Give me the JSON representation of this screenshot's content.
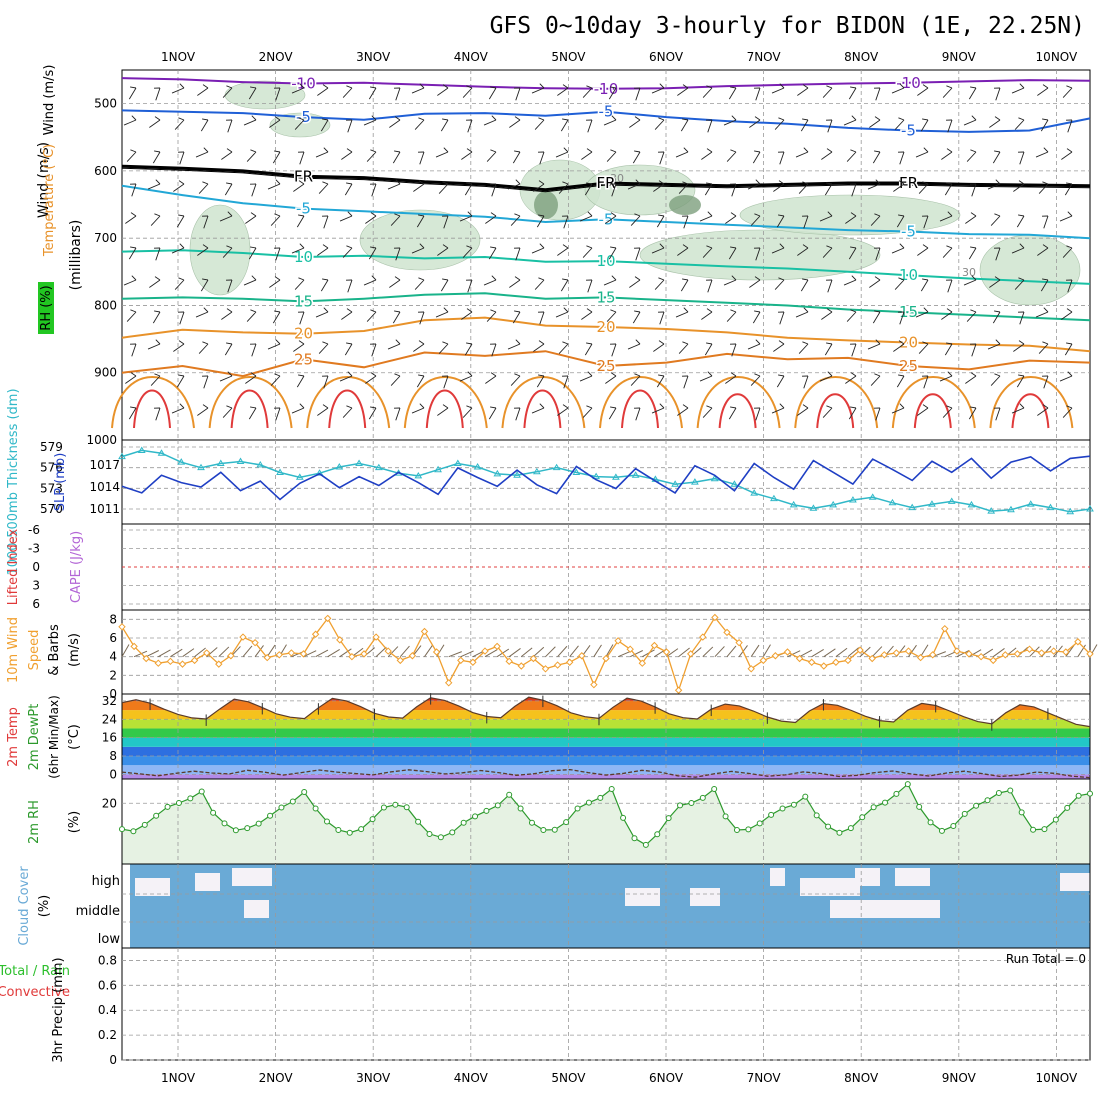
{
  "title": "GFS 0~10day 3-hourly for BIDON (1E, 22.25N)",
  "days": [
    "1NOV",
    "2NOV",
    "3NOV",
    "4NOV",
    "5NOV",
    "6NOV",
    "7NOV",
    "8NOV",
    "9NOV",
    "10NOV"
  ],
  "colors": {
    "temp_cold": "#7a1fb3",
    "temp_cool": "#1f5fd6",
    "temp_mild": "#22a7d6",
    "temp_warm": "#19c0a4",
    "temp_orange": "#e8922a",
    "temp_hot": "#e03a3a",
    "rh_fill": "#cfe5d0",
    "slp": "#1f3fc4",
    "thick": "#30b8c8",
    "wind10": "#f0a030",
    "rh2m": "#2d9a2d",
    "cloud": "#6aaad6",
    "grid": "#9a9a9a"
  },
  "chart_data": [
    {
      "type": "contour",
      "id": "upper_air",
      "ylabel_parts": [
        "RH (%)",
        "Temperature (°C)",
        "Wind (m/s)"
      ],
      "ylabel_unit": "(millibars)",
      "y_ticks": [
        "500",
        "600",
        "700",
        "800",
        "900",
        "1000"
      ],
      "ylim": [
        450,
        1000
      ],
      "temp_contours": [
        {
          "label": "-10",
          "color": "#7a1fb3",
          "values": [
            462,
            464,
            468,
            470,
            469,
            472,
            475,
            477,
            478,
            477,
            474,
            472,
            470,
            469,
            467,
            465,
            466
          ]
        },
        {
          "label": "-5",
          "color": "#1f5fd6",
          "values": [
            510,
            512,
            514,
            520,
            524,
            515,
            514,
            518,
            512,
            520,
            526,
            530,
            536,
            540,
            542,
            540,
            522
          ]
        },
        {
          "label": "FR",
          "color": "#000000",
          "values": [
            593,
            596,
            600,
            608,
            610,
            616,
            620,
            628,
            618,
            620,
            622,
            620,
            618,
            618,
            620,
            621,
            622
          ]
        },
        {
          "label": "-5",
          "color": "#22a7d6",
          "values": [
            622,
            636,
            648,
            656,
            660,
            664,
            668,
            676,
            672,
            676,
            680,
            684,
            688,
            690,
            694,
            695,
            700
          ]
        },
        {
          "label": "10",
          "color": "#19c0a4",
          "values": [
            720,
            718,
            722,
            728,
            726,
            730,
            728,
            735,
            734,
            738,
            742,
            745,
            750,
            755,
            760,
            764,
            768
          ]
        },
        {
          "label": "15",
          "color": "#19b38a",
          "values": [
            790,
            788,
            790,
            794,
            790,
            784,
            782,
            790,
            788,
            792,
            796,
            800,
            806,
            810,
            814,
            818,
            822
          ]
        },
        {
          "label": "20",
          "color": "#e8922a",
          "values": [
            848,
            836,
            840,
            842,
            838,
            822,
            818,
            830,
            832,
            835,
            840,
            848,
            852,
            855,
            858,
            860,
            868
          ]
        },
        {
          "label": "25",
          "color": "#e07a20",
          "values": [
            900,
            890,
            905,
            880,
            892,
            870,
            875,
            868,
            890,
            885,
            872,
            880,
            878,
            890,
            895,
            882,
            885
          ]
        }
      ],
      "rh_label": "30",
      "fr_label": "FR"
    },
    {
      "type": "line",
      "id": "slp_thickness",
      "ylabel_left": "1000-500mb Thickness (dm)",
      "ylabel_right": "SLP (mb)",
      "thick_ticks": [
        "579",
        "576",
        "573",
        "570"
      ],
      "slp_ticks": [
        "1017",
        "1014",
        "1011"
      ],
      "series": [
        {
          "name": "SLP",
          "values": [
            1014.1,
            1013.2,
            1015.6,
            1014.6,
            1014.0,
            1016.0,
            1013.5,
            1014.8,
            1012.3,
            1014.5,
            1015.8,
            1013.9,
            1015.4,
            1014.2,
            1016.0,
            1014.6,
            1013.0,
            1016.6,
            1015.3,
            1014.1,
            1016.3,
            1014.3,
            1013.1,
            1016.8,
            1015.0,
            1013.8,
            1016.5,
            1014.8,
            1013.2,
            1016.9,
            1015.6,
            1013.5,
            1017.2,
            1015.3,
            1013.7,
            1017.6,
            1016.0,
            1014.4,
            1017.8,
            1016.4,
            1014.9,
            1017.5,
            1016.0,
            1017.9,
            1015.2,
            1017.4,
            1018.1,
            1016.2,
            1017.9,
            1018.2
          ]
        },
        {
          "name": "Thickness",
          "values": [
            577.6,
            578.5,
            578.1,
            576.8,
            576.0,
            576.6,
            576.9,
            576.4,
            575.3,
            574.6,
            575.2,
            576.1,
            576.6,
            576.0,
            575.2,
            574.8,
            575.7,
            576.6,
            576.1,
            575.1,
            574.9,
            575.4,
            576.0,
            575.3,
            574.7,
            574.6,
            574.9,
            574.3,
            573.6,
            573.9,
            574.4,
            573.6,
            572.3,
            571.5,
            570.6,
            570.1,
            570.6,
            571.3,
            571.7,
            570.9,
            570.2,
            570.7,
            571.1,
            570.6,
            569.7,
            569.9,
            570.7,
            570.2,
            569.6,
            570.0
          ]
        }
      ]
    },
    {
      "type": "line",
      "id": "cape_li",
      "ylabel_left": "Lifted Index",
      "ylabel_right": "CAPE (J/kg)",
      "y_ticks": [
        "-6",
        "-3",
        "0",
        "3",
        "6"
      ],
      "series": [
        {
          "name": "Lifted Index zero line",
          "values": [
            0,
            0
          ]
        }
      ]
    },
    {
      "type": "line",
      "id": "wind10m",
      "ylabel_parts": [
        "10m Wind",
        "Speed",
        "& Barbs"
      ],
      "ylabel_unit": "(m/s)",
      "y_ticks": [
        "8",
        "6",
        "4",
        "2",
        "0"
      ],
      "ylim": [
        0,
        9
      ],
      "series": [
        {
          "name": "10m Wind Speed",
          "values": [
            7.2,
            5.1,
            3.8,
            3.3,
            3.5,
            3.2,
            3.6,
            4.4,
            3.2,
            4.1,
            6.1,
            5.5,
            3.9,
            4.2,
            4.4,
            4.3,
            6.4,
            8.1,
            5.8,
            4.0,
            4.3,
            6.1,
            4.6,
            3.6,
            4.1,
            6.7,
            4.5,
            1.2,
            3.6,
            3.4,
            4.6,
            5.1,
            3.5,
            3.0,
            3.8,
            2.7,
            3.1,
            3.4,
            4.1,
            1.0,
            3.8,
            5.7,
            4.8,
            3.3,
            5.2,
            4.5,
            0.4,
            4.3,
            6.1,
            8.2,
            6.6,
            5.5,
            2.7,
            3.6,
            4.1,
            4.5,
            3.8,
            3.4,
            3.0,
            3.4,
            3.6,
            4.7,
            3.8,
            4.2,
            4.4,
            4.6,
            3.9,
            4.2,
            7.0,
            4.6,
            4.3,
            4.0,
            3.6,
            4.2,
            4.3,
            4.8,
            4.4,
            4.6,
            4.5,
            5.6,
            4.3
          ]
        }
      ]
    },
    {
      "type": "area",
      "id": "temp2m",
      "ylabel_parts": [
        "2m Temp",
        "2m DewPt",
        "(6hr Min/Max)"
      ],
      "ylabel_unit": "(°C)",
      "y_ticks": [
        "32",
        "24",
        "16",
        "8",
        "0"
      ],
      "ylim": [
        -2,
        35
      ],
      "series": [
        {
          "name": "2m Temp",
          "values": [
            31.2,
            32.5,
            31.0,
            28.4,
            26.1,
            24.6,
            24.1,
            28.6,
            32.8,
            31.6,
            29.1,
            26.4,
            24.9,
            24.3,
            29.0,
            33.1,
            32.0,
            29.5,
            26.6,
            25.0,
            24.5,
            29.4,
            33.4,
            32.2,
            29.8,
            26.9,
            25.2,
            24.7,
            29.6,
            33.6,
            32.3,
            29.9,
            26.8,
            25.1,
            24.4,
            29.2,
            33.2,
            31.9,
            29.4,
            26.4,
            24.7,
            24.1,
            28.4,
            30.6,
            29.8,
            27.6,
            25.0,
            23.2,
            22.6,
            27.6,
            30.8,
            30.1,
            27.8,
            25.3,
            23.4,
            22.8,
            27.9,
            30.9,
            30.0,
            27.6,
            25.1,
            23.0,
            22.0,
            26.8,
            30.3,
            29.4,
            26.8,
            24.3,
            21.8,
            20.8
          ]
        },
        {
          "name": "2m DewPt",
          "values": [
            1.0,
            0.2,
            -0.6,
            0.5,
            1.4,
            0.6,
            0.2,
            1.8,
            0.9,
            -0.3,
            0.8,
            1.9,
            1.0,
            0.4,
            -0.2,
            1.1,
            2.0,
            1.2,
            0.2,
            0.7,
            1.7,
            0.8,
            -0.4,
            0.3,
            1.6,
            2.1,
            0.8,
            -0.3,
            0.5,
            1.8,
            1.0,
            -0.6,
            -1.2,
            0.2,
            1.3,
            0.4,
            -0.8,
            -0.2,
            1.1,
            0.4,
            -0.9,
            -0.4,
            0.8,
            1.5,
            0.2,
            -0.7,
            0.6,
            1.4,
            0.3,
            -0.9,
            -0.3,
            1.0,
            0.5,
            -0.8,
            -1.4
          ]
        }
      ]
    },
    {
      "type": "area",
      "id": "rh2m",
      "ylabel": "2m RH",
      "ylabel_unit": "(%)",
      "y_ticks": [
        "20"
      ],
      "ylim": [
        0,
        28
      ],
      "series": [
        {
          "name": "2m RH",
          "values": [
            11.5,
            10.8,
            12.9,
            15.9,
            18.8,
            20.1,
            21.6,
            23.9,
            16.9,
            13.4,
            11.1,
            11.8,
            13.3,
            15.9,
            18.6,
            20.6,
            23.7,
            18.3,
            14.0,
            11.2,
            10.3,
            11.5,
            14.8,
            18.6,
            19.5,
            18.7,
            13.9,
            9.9,
            8.8,
            10.4,
            13.6,
            15.7,
            17.5,
            19.3,
            22.8,
            18.3,
            13.6,
            11.2,
            11.3,
            13.8,
            18.3,
            20.2,
            21.8,
            24.7,
            15.2,
            8.5,
            6.3,
            9.8,
            15.1,
            19.3,
            20.1,
            21.8,
            24.7,
            15.7,
            11.2,
            11.4,
            13.4,
            16.2,
            18.3,
            19.5,
            22.2,
            16.0,
            12.3,
            10.3,
            11.8,
            15.4,
            18.7,
            20.2,
            23.1,
            26.3,
            18.8,
            13.7,
            10.9,
            12.5,
            16.5,
            19.2,
            21.0,
            23.4,
            24.2,
            17.0,
            11.3,
            11.5,
            14.6,
            18.5,
            22.5,
            23.2
          ]
        }
      ]
    },
    {
      "type": "heatmap",
      "id": "cloud",
      "ylabel": "Cloud Cover",
      "ylabel_unit": "(%)",
      "levels": [
        "high",
        "middle",
        "low"
      ]
    },
    {
      "type": "bar",
      "id": "precip",
      "ylabel_left": "Total / Rain",
      "ylabel_left2": "Convective",
      "ylabel_right": "3hr Precip (mm)",
      "y_ticks": [
        "0.8",
        "0.6",
        "0.4",
        "0.2",
        "0"
      ],
      "ylim": [
        0,
        0.9
      ],
      "run_total_label": "Run Total = 0",
      "values": []
    }
  ]
}
